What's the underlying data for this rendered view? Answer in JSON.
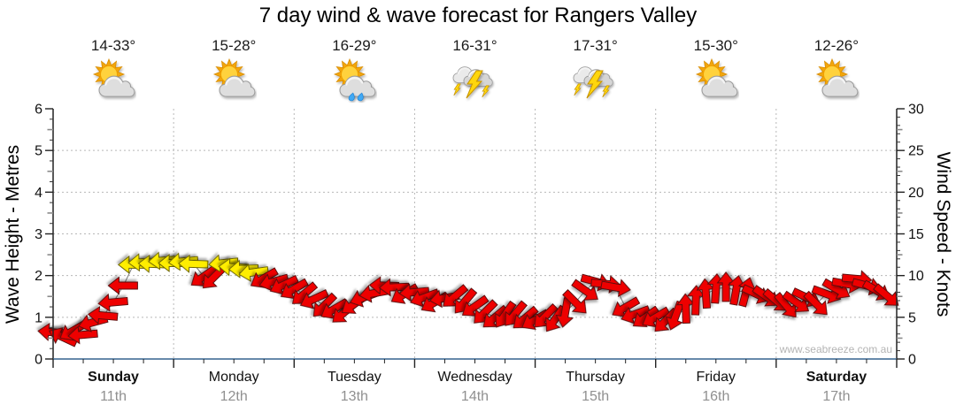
{
  "title": "7 day wind & wave forecast for Rangers Valley",
  "watermark": "www.seabreeze.com.au",
  "axes": {
    "left_label": "Wave Height - Metres",
    "right_label": "Wind Speed - Knots",
    "wave_ticks": [
      0,
      1,
      2,
      3,
      4,
      5,
      6
    ],
    "wind_ticks": [
      0,
      5,
      10,
      15,
      20,
      25,
      30
    ],
    "wave_range": [
      0,
      6
    ],
    "wind_range": [
      0,
      30
    ]
  },
  "days": [
    {
      "name": "Sunday",
      "date": "11th",
      "temp": "14-33°",
      "icon": "sun-cloud",
      "emphasis": true
    },
    {
      "name": "Monday",
      "date": "12th",
      "temp": "15-28°",
      "icon": "sun-cloud",
      "emphasis": false
    },
    {
      "name": "Tuesday",
      "date": "13th",
      "temp": "16-29°",
      "icon": "sun-cloud-rain",
      "emphasis": false
    },
    {
      "name": "Wednesday",
      "date": "14th",
      "temp": "16-31°",
      "icon": "storm",
      "emphasis": false
    },
    {
      "name": "Thursday",
      "date": "15th",
      "temp": "17-31°",
      "icon": "storm",
      "emphasis": false
    },
    {
      "name": "Friday",
      "date": "16th",
      "temp": "15-30°",
      "icon": "sun-cloud",
      "emphasis": false
    },
    {
      "name": "Saturday",
      "date": "17th",
      "temp": "12-26°",
      "icon": "sun-cloud",
      "emphasis": true
    }
  ],
  "chart_data": {
    "type": "line",
    "subtype": "wind-direction-arrows-over-time",
    "x_unit": "hours from Sunday 00:00 (0-168, 2-hourly samples)",
    "grid": true,
    "gridline_color": "#b8b8b8",
    "line_color": "#7d7d7d",
    "wave_series": {
      "name": "Wave Height",
      "units": "metres",
      "baseline_value": 0,
      "color": "#35648f",
      "note": "flat at ~0 m across all 7 days (inland site)"
    },
    "wind_series": {
      "name": "Wind Speed & Direction",
      "units": "knots",
      "arrow_colors": {
        "under_10kn": "#ee0000",
        "10_to_15kn": "#ffee00"
      },
      "yellow_threshold_kn": 10,
      "point_format": [
        "hour",
        "knots",
        "arrow_rotation_deg_cw_from_east"
      ],
      "points": [
        [
          0,
          3.2,
          185
        ],
        [
          2,
          2.6,
          205
        ],
        [
          4,
          3.4,
          150
        ],
        [
          6,
          2.9,
          175
        ],
        [
          8,
          4.4,
          165
        ],
        [
          10,
          5.2,
          185
        ],
        [
          12,
          6.8,
          175
        ],
        [
          14,
          8.8,
          180
        ],
        [
          16,
          11.3,
          180
        ],
        [
          18,
          11.6,
          178
        ],
        [
          20,
          11.4,
          182
        ],
        [
          22,
          11.8,
          176
        ],
        [
          24,
          11.5,
          180
        ],
        [
          26,
          11.7,
          175
        ],
        [
          28,
          11.4,
          182
        ],
        [
          30,
          9.9,
          145
        ],
        [
          32,
          9.8,
          135
        ],
        [
          34,
          11.5,
          174
        ],
        [
          36,
          11.0,
          183
        ],
        [
          38,
          10.8,
          178
        ],
        [
          40,
          10.4,
          172
        ],
        [
          42,
          9.7,
          150
        ],
        [
          44,
          9.3,
          165
        ],
        [
          46,
          8.9,
          155
        ],
        [
          48,
          8.4,
          150
        ],
        [
          50,
          7.8,
          140
        ],
        [
          52,
          7.2,
          155
        ],
        [
          54,
          6.4,
          135
        ],
        [
          56,
          6.0,
          150
        ],
        [
          58,
          5.6,
          140
        ],
        [
          60,
          6.6,
          145
        ],
        [
          62,
          7.4,
          160
        ],
        [
          64,
          7.9,
          170
        ],
        [
          66,
          8.8,
          182
        ],
        [
          68,
          8.6,
          178
        ],
        [
          70,
          7.8,
          150
        ],
        [
          72,
          8.0,
          175
        ],
        [
          74,
          7.4,
          160
        ],
        [
          76,
          6.8,
          150
        ],
        [
          78,
          7.3,
          170
        ],
        [
          80,
          7.5,
          140
        ],
        [
          82,
          6.9,
          130
        ],
        [
          84,
          6.3,
          145
        ],
        [
          86,
          5.6,
          135
        ],
        [
          88,
          5.0,
          140
        ],
        [
          90,
          5.3,
          125
        ],
        [
          92,
          5.4,
          130
        ],
        [
          94,
          4.9,
          140
        ],
        [
          96,
          4.7,
          150
        ],
        [
          98,
          5.1,
          135
        ],
        [
          100,
          4.8,
          125
        ],
        [
          102,
          5.6,
          100
        ],
        [
          104,
          6.8,
          45
        ],
        [
          106,
          8.2,
          35
        ],
        [
          108,
          9.3,
          15
        ],
        [
          110,
          9.0,
          5
        ],
        [
          112,
          8.6,
          10
        ],
        [
          114,
          6.2,
          150
        ],
        [
          116,
          5.4,
          160
        ],
        [
          118,
          5.0,
          145
        ],
        [
          120,
          5.0,
          150
        ],
        [
          122,
          4.6,
          135
        ],
        [
          124,
          5.2,
          110
        ],
        [
          126,
          6.0,
          268
        ],
        [
          128,
          7.0,
          272
        ],
        [
          130,
          7.8,
          266
        ],
        [
          132,
          8.4,
          274
        ],
        [
          134,
          8.6,
          270
        ],
        [
          136,
          8.2,
          280
        ],
        [
          138,
          8.0,
          285
        ],
        [
          140,
          7.8,
          25
        ],
        [
          142,
          7.5,
          35
        ],
        [
          144,
          7.0,
          40
        ],
        [
          146,
          6.4,
          50
        ],
        [
          148,
          6.8,
          35
        ],
        [
          150,
          7.4,
          25
        ],
        [
          152,
          6.6,
          45
        ],
        [
          154,
          7.8,
          20
        ],
        [
          156,
          8.4,
          30
        ],
        [
          158,
          9.0,
          10
        ],
        [
          160,
          9.6,
          5
        ],
        [
          162,
          8.8,
          15
        ],
        [
          164,
          8.2,
          30
        ],
        [
          166,
          7.6,
          40
        ]
      ]
    }
  },
  "colors": {
    "arrow_red": "#ee0000",
    "arrow_yellow": "#ffee00",
    "axis_black": "#222222",
    "bottom_axis_blue": "#35648f",
    "date_gray": "#909090",
    "gridline": "#b8b8b8"
  }
}
